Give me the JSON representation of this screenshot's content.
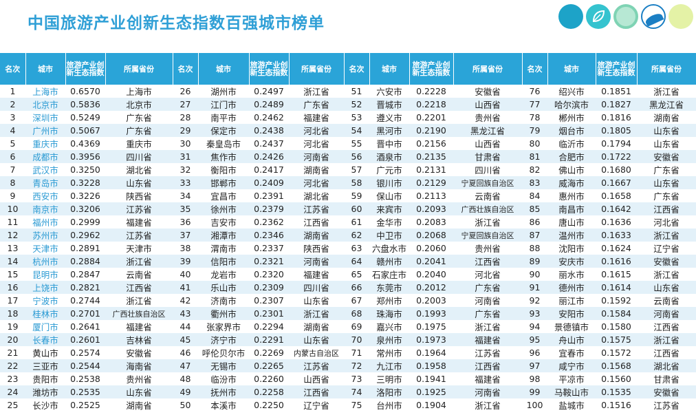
{
  "title": "中国旅游产业创新生态指数百强城市榜单",
  "headers": [
    "名次",
    "城市",
    "旅游产业创新生态指数",
    "所属省份"
  ],
  "rows": [
    {
      "rank": "1",
      "city": "上海市",
      "index": "0.6570",
      "province": "上海市",
      "hl": true
    },
    {
      "rank": "2",
      "city": "北京市",
      "index": "0.5836",
      "province": "北京市",
      "hl": true
    },
    {
      "rank": "3",
      "city": "深圳市",
      "index": "0.5249",
      "province": "广东省",
      "hl": true
    },
    {
      "rank": "4",
      "city": "广州市",
      "index": "0.5067",
      "province": "广东省",
      "hl": true
    },
    {
      "rank": "5",
      "city": "重庆市",
      "index": "0.4369",
      "province": "重庆市",
      "hl": true
    },
    {
      "rank": "6",
      "city": "成都市",
      "index": "0.3956",
      "province": "四川省",
      "hl": true
    },
    {
      "rank": "7",
      "city": "武汉市",
      "index": "0.3250",
      "province": "湖北省",
      "hl": true
    },
    {
      "rank": "8",
      "city": "青岛市",
      "index": "0.3228",
      "province": "山东省",
      "hl": true
    },
    {
      "rank": "9",
      "city": "西安市",
      "index": "0.3226",
      "province": "陕西省",
      "hl": true
    },
    {
      "rank": "10",
      "city": "南京市",
      "index": "0.3206",
      "province": "江苏省",
      "hl": true
    },
    {
      "rank": "11",
      "city": "福州市",
      "index": "0.2999",
      "province": "福建省",
      "hl": true
    },
    {
      "rank": "12",
      "city": "苏州市",
      "index": "0.2962",
      "province": "江苏省",
      "hl": true
    },
    {
      "rank": "13",
      "city": "天津市",
      "index": "0.2891",
      "province": "天津市",
      "hl": true
    },
    {
      "rank": "14",
      "city": "杭州市",
      "index": "0.2884",
      "province": "浙江省",
      "hl": true
    },
    {
      "rank": "15",
      "city": "昆明市",
      "index": "0.2847",
      "province": "云南省",
      "hl": true
    },
    {
      "rank": "16",
      "city": "上饶市",
      "index": "0.2821",
      "province": "江西省",
      "hl": true
    },
    {
      "rank": "17",
      "city": "宁波市",
      "index": "0.2744",
      "province": "浙江省",
      "hl": true
    },
    {
      "rank": "18",
      "city": "桂林市",
      "index": "0.2701",
      "province": "广西壮族自治区",
      "hl": true
    },
    {
      "rank": "19",
      "city": "厦门市",
      "index": "0.2641",
      "province": "福建省",
      "hl": true
    },
    {
      "rank": "20",
      "city": "长春市",
      "index": "0.2601",
      "province": "吉林省",
      "hl": true
    },
    {
      "rank": "21",
      "city": "黄山市",
      "index": "0.2574",
      "province": "安徽省",
      "hl": false
    },
    {
      "rank": "22",
      "city": "三亚市",
      "index": "0.2544",
      "province": "海南省",
      "hl": false
    },
    {
      "rank": "23",
      "city": "贵阳市",
      "index": "0.2538",
      "province": "贵州省",
      "hl": false
    },
    {
      "rank": "24",
      "city": "潍坊市",
      "index": "0.2535",
      "province": "山东省",
      "hl": false
    },
    {
      "rank": "25",
      "city": "长沙市",
      "index": "0.2525",
      "province": "湖南省",
      "hl": false
    },
    {
      "rank": "26",
      "city": "湖州市",
      "index": "0.2497",
      "province": "浙江省",
      "hl": false
    },
    {
      "rank": "27",
      "city": "江门市",
      "index": "0.2489",
      "province": "广东省",
      "hl": false
    },
    {
      "rank": "28",
      "city": "南平市",
      "index": "0.2462",
      "province": "福建省",
      "hl": false
    },
    {
      "rank": "29",
      "city": "保定市",
      "index": "0.2438",
      "province": "河北省",
      "hl": false
    },
    {
      "rank": "30",
      "city": "秦皇岛市",
      "index": "0.2437",
      "province": "河北省",
      "hl": false
    },
    {
      "rank": "31",
      "city": "焦作市",
      "index": "0.2426",
      "province": "河南省",
      "hl": false
    },
    {
      "rank": "32",
      "city": "衡阳市",
      "index": "0.2417",
      "province": "湖南省",
      "hl": false
    },
    {
      "rank": "33",
      "city": "邯郸市",
      "index": "0.2409",
      "province": "河北省",
      "hl": false
    },
    {
      "rank": "34",
      "city": "宜昌市",
      "index": "0.2391",
      "province": "湖北省",
      "hl": false
    },
    {
      "rank": "35",
      "city": "徐州市",
      "index": "0.2379",
      "province": "江苏省",
      "hl": false
    },
    {
      "rank": "36",
      "city": "吉安市",
      "index": "0.2362",
      "province": "江西省",
      "hl": false
    },
    {
      "rank": "37",
      "city": "湘潭市",
      "index": "0.2346",
      "province": "湖南省",
      "hl": false
    },
    {
      "rank": "38",
      "city": "渭南市",
      "index": "0.2337",
      "province": "陕西省",
      "hl": false
    },
    {
      "rank": "39",
      "city": "信阳市",
      "index": "0.2321",
      "province": "河南省",
      "hl": false
    },
    {
      "rank": "40",
      "city": "龙岩市",
      "index": "0.2320",
      "province": "福建省",
      "hl": false
    },
    {
      "rank": "41",
      "city": "乐山市",
      "index": "0.2309",
      "province": "四川省",
      "hl": false
    },
    {
      "rank": "42",
      "city": "济南市",
      "index": "0.2307",
      "province": "山东省",
      "hl": false
    },
    {
      "rank": "43",
      "city": "衢州市",
      "index": "0.2301",
      "province": "浙江省",
      "hl": false
    },
    {
      "rank": "44",
      "city": "张家界市",
      "index": "0.2294",
      "province": "湖南省",
      "hl": false
    },
    {
      "rank": "45",
      "city": "济宁市",
      "index": "0.2291",
      "province": "山东省",
      "hl": false
    },
    {
      "rank": "46",
      "city": "呼伦贝尔市",
      "index": "0.2269",
      "province": "内蒙古自治区",
      "hl": false
    },
    {
      "rank": "47",
      "city": "无锡市",
      "index": "0.2265",
      "province": "江苏省",
      "hl": false
    },
    {
      "rank": "48",
      "city": "临汾市",
      "index": "0.2260",
      "province": "山西省",
      "hl": false
    },
    {
      "rank": "49",
      "city": "抚州市",
      "index": "0.2258",
      "province": "江西省",
      "hl": false
    },
    {
      "rank": "50",
      "city": "本溪市",
      "index": "0.2250",
      "province": "辽宁省",
      "hl": false
    },
    {
      "rank": "51",
      "city": "六安市",
      "index": "0.2228",
      "province": "安徽省",
      "hl": false
    },
    {
      "rank": "52",
      "city": "晋城市",
      "index": "0.2218",
      "province": "山西省",
      "hl": false
    },
    {
      "rank": "53",
      "city": "遵义市",
      "index": "0.2201",
      "province": "贵州省",
      "hl": false
    },
    {
      "rank": "54",
      "city": "黑河市",
      "index": "0.2190",
      "province": "黑龙江省",
      "hl": false
    },
    {
      "rank": "55",
      "city": "晋中市",
      "index": "0.2156",
      "province": "山西省",
      "hl": false
    },
    {
      "rank": "56",
      "city": "酒泉市",
      "index": "0.2135",
      "province": "甘肃省",
      "hl": false
    },
    {
      "rank": "57",
      "city": "广元市",
      "index": "0.2131",
      "province": "四川省",
      "hl": false
    },
    {
      "rank": "58",
      "city": "银川市",
      "index": "0.2129",
      "province": "宁夏回族自治区",
      "hl": false
    },
    {
      "rank": "59",
      "city": "保山市",
      "index": "0.2113",
      "province": "云南省",
      "hl": false
    },
    {
      "rank": "60",
      "city": "来宾市",
      "index": "0.2093",
      "province": "广西壮族自治区",
      "hl": false
    },
    {
      "rank": "61",
      "city": "金华市",
      "index": "0.2083",
      "province": "浙江省",
      "hl": false
    },
    {
      "rank": "62",
      "city": "中卫市",
      "index": "0.2068",
      "province": "宁夏回族自治区",
      "hl": false
    },
    {
      "rank": "63",
      "city": "六盘水市",
      "index": "0.2060",
      "province": "贵州省",
      "hl": false
    },
    {
      "rank": "64",
      "city": "赣州市",
      "index": "0.2041",
      "province": "江西省",
      "hl": false
    },
    {
      "rank": "65",
      "city": "石家庄市",
      "index": "0.2040",
      "province": "河北省",
      "hl": false
    },
    {
      "rank": "66",
      "city": "东莞市",
      "index": "0.2012",
      "province": "广东省",
      "hl": false
    },
    {
      "rank": "67",
      "city": "郑州市",
      "index": "0.2003",
      "province": "河南省",
      "hl": false
    },
    {
      "rank": "68",
      "city": "珠海市",
      "index": "0.1993",
      "province": "广东省",
      "hl": false
    },
    {
      "rank": "69",
      "city": "嘉兴市",
      "index": "0.1975",
      "province": "浙江省",
      "hl": false
    },
    {
      "rank": "70",
      "city": "泉州市",
      "index": "0.1973",
      "province": "福建省",
      "hl": false
    },
    {
      "rank": "71",
      "city": "常州市",
      "index": "0.1964",
      "province": "江苏省",
      "hl": false
    },
    {
      "rank": "72",
      "city": "九江市",
      "index": "0.1958",
      "province": "江西省",
      "hl": false
    },
    {
      "rank": "73",
      "city": "三明市",
      "index": "0.1941",
      "province": "福建省",
      "hl": false
    },
    {
      "rank": "74",
      "city": "洛阳市",
      "index": "0.1925",
      "province": "河南省",
      "hl": false
    },
    {
      "rank": "75",
      "city": "台州市",
      "index": "0.1904",
      "province": "浙江省",
      "hl": false
    },
    {
      "rank": "76",
      "city": "绍兴市",
      "index": "0.1851",
      "province": "浙江省",
      "hl": false
    },
    {
      "rank": "77",
      "city": "哈尔滨市",
      "index": "0.1827",
      "province": "黑龙江省",
      "hl": false
    },
    {
      "rank": "78",
      "city": "郴州市",
      "index": "0.1816",
      "province": "湖南省",
      "hl": false
    },
    {
      "rank": "79",
      "city": "烟台市",
      "index": "0.1805",
      "province": "山东省",
      "hl": false
    },
    {
      "rank": "80",
      "city": "临沂市",
      "index": "0.1794",
      "province": "山东省",
      "hl": false
    },
    {
      "rank": "81",
      "city": "合肥市",
      "index": "0.1722",
      "province": "安徽省",
      "hl": false
    },
    {
      "rank": "82",
      "city": "佛山市",
      "index": "0.1680",
      "province": "广东省",
      "hl": false
    },
    {
      "rank": "83",
      "city": "威海市",
      "index": "0.1667",
      "province": "山东省",
      "hl": false
    },
    {
      "rank": "84",
      "city": "惠州市",
      "index": "0.1658",
      "province": "广东省",
      "hl": false
    },
    {
      "rank": "85",
      "city": "南昌市",
      "index": "0.1642",
      "province": "江西省",
      "hl": false
    },
    {
      "rank": "86",
      "city": "唐山市",
      "index": "0.1636",
      "province": "河北省",
      "hl": false
    },
    {
      "rank": "87",
      "city": "温州市",
      "index": "0.1633",
      "province": "浙江省",
      "hl": false
    },
    {
      "rank": "88",
      "city": "沈阳市",
      "index": "0.1624",
      "province": "辽宁省",
      "hl": false
    },
    {
      "rank": "89",
      "city": "安庆市",
      "index": "0.1616",
      "province": "安徽省",
      "hl": false
    },
    {
      "rank": "90",
      "city": "丽水市",
      "index": "0.1615",
      "province": "浙江省",
      "hl": false
    },
    {
      "rank": "91",
      "city": "德州市",
      "index": "0.1614",
      "province": "山东省",
      "hl": false
    },
    {
      "rank": "92",
      "city": "丽江市",
      "index": "0.1592",
      "province": "云南省",
      "hl": false
    },
    {
      "rank": "93",
      "city": "安阳市",
      "index": "0.1584",
      "province": "河南省",
      "hl": false
    },
    {
      "rank": "94",
      "city": "景德镇市",
      "index": "0.1580",
      "province": "江西省",
      "hl": false
    },
    {
      "rank": "95",
      "city": "舟山市",
      "index": "0.1575",
      "province": "浙江省",
      "hl": false
    },
    {
      "rank": "96",
      "city": "宜春市",
      "index": "0.1572",
      "province": "江西省",
      "hl": false
    },
    {
      "rank": "97",
      "city": "咸宁市",
      "index": "0.1568",
      "province": "湖北省",
      "hl": false
    },
    {
      "rank": "98",
      "city": "平凉市",
      "index": "0.1560",
      "province": "甘肃省",
      "hl": false
    },
    {
      "rank": "99",
      "city": "马鞍山市",
      "index": "0.1535",
      "province": "安徽省",
      "hl": false
    },
    {
      "rank": "100",
      "city": "盐城市",
      "index": "0.1516",
      "province": "江苏省",
      "hl": false
    }
  ]
}
